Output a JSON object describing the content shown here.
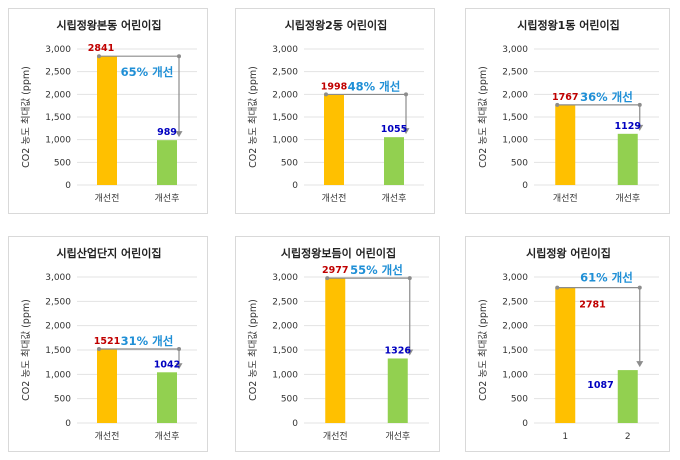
{
  "chart_data": [
    {
      "type": "bar",
      "title": "시립정왕본동 어린이집",
      "ylabel": "CO2 농도 최대값 (ppm)",
      "categories": [
        "개선전",
        "개선후"
      ],
      "values": [
        2841,
        989
      ],
      "value_labels": [
        "2841",
        "989"
      ],
      "improvement": "65% 개선",
      "ylim": [
        0,
        3000
      ],
      "yticks": [
        "0",
        "500",
        "1,000",
        "1,500",
        "2,000",
        "2,500",
        "3,000"
      ]
    },
    {
      "type": "bar",
      "title": "시립정왕2동 어린이집",
      "ylabel": "CO2 농도 최대값 (ppm)",
      "categories": [
        "개선전",
        "개선후"
      ],
      "values": [
        1998,
        1055
      ],
      "value_labels": [
        "1998",
        "1055"
      ],
      "improvement": "48% 개선",
      "ylim": [
        0,
        3000
      ],
      "yticks": [
        "0",
        "500",
        "1,000",
        "1,500",
        "2,000",
        "2,500",
        "3,000"
      ]
    },
    {
      "type": "bar",
      "title": "시립정왕1동 어린이집",
      "ylabel": "CO2 농도 최대값 (ppm)",
      "categories": [
        "개선전",
        "개선후"
      ],
      "values": [
        1767,
        1129
      ],
      "value_labels": [
        "1767",
        "1129"
      ],
      "improvement": "36% 개선",
      "ylim": [
        0,
        3000
      ],
      "yticks": [
        "0",
        "500",
        "1,000",
        "1,500",
        "2,000",
        "2,500",
        "3,000"
      ]
    },
    {
      "type": "bar",
      "title": "시립산업단지 어린이집",
      "ylabel": "CO2 농도 최대값 (ppm)",
      "categories": [
        "개선전",
        "개선후"
      ],
      "values": [
        1521,
        1042
      ],
      "value_labels": [
        "1521",
        "1042"
      ],
      "improvement": "31% 개선",
      "ylim": [
        0,
        3000
      ],
      "yticks": [
        "0",
        "500",
        "1,000",
        "1,500",
        "2,000",
        "2,500",
        "3,000"
      ]
    },
    {
      "type": "bar",
      "title": "시립정왕보듬이 어린이집",
      "ylabel": "CO2 농도 최대값 (ppm)",
      "categories": [
        "개선전",
        "개선후"
      ],
      "values": [
        2977,
        1326
      ],
      "value_labels": [
        "2977",
        "1326"
      ],
      "improvement": "55% 개선",
      "ylim": [
        0,
        3000
      ],
      "yticks": [
        "0",
        "500",
        "1,000",
        "1,500",
        "2,000",
        "2,500",
        "3,000"
      ]
    },
    {
      "type": "bar",
      "title": "시립정왕 어린이집",
      "ylabel": "CO2 농도 최대값 (ppm)",
      "categories": [
        "1",
        "2"
      ],
      "values": [
        2781,
        1087
      ],
      "value_labels": [
        "2781",
        "1087"
      ],
      "improvement": "61% 개선",
      "ylim": [
        0,
        3000
      ],
      "yticks": [
        "0",
        "500",
        "1,000",
        "1,500",
        "2,000",
        "2,500",
        "3,000"
      ]
    }
  ],
  "colors": {
    "before_bar": "#ffc000",
    "after_bar": "#92d050",
    "before_label": "#c00000",
    "after_label": "#0000c0",
    "improvement_text": "#1f8fd6",
    "arrow": "#8c8c8c",
    "grid": "#e3e3e3"
  }
}
